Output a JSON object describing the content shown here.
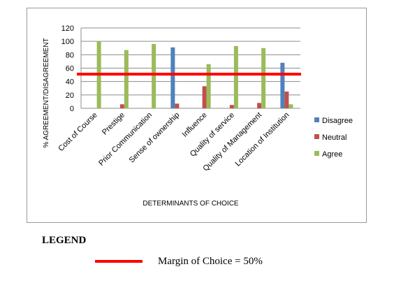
{
  "chart_data": {
    "type": "bar",
    "categories": [
      "Cost of Course",
      "Prestige",
      "Prior Communication",
      "Sense of ownership",
      "Influence",
      "Quality of service",
      "Quality of Management",
      "Location of Institution"
    ],
    "series": [
      {
        "name": "Disagree",
        "color": "#4f81bd",
        "values": [
          0,
          0,
          0,
          91,
          0,
          0,
          0,
          68
        ]
      },
      {
        "name": "Neutral",
        "color": "#c0504d",
        "values": [
          0,
          6,
          0,
          7,
          33,
          5,
          8,
          25
        ]
      },
      {
        "name": "Agree",
        "color": "#9bbb59",
        "values": [
          100,
          87,
          96,
          0,
          66,
          93,
          90,
          6
        ]
      }
    ],
    "xlabel": "DETERMINANTS  OF CHOICE",
    "ylabel": "% AGREEMENT/DISAGREEMENT",
    "ylim": [
      0,
      120
    ],
    "yticks": [
      0,
      20,
      40,
      60,
      80,
      100,
      120
    ],
    "grid": true,
    "legend_position": "right",
    "reference_line": {
      "value": 50,
      "color": "#ff0000"
    }
  },
  "legend": {
    "heading": "LEGEND",
    "line_label": "Margin of Choice = 50%"
  }
}
